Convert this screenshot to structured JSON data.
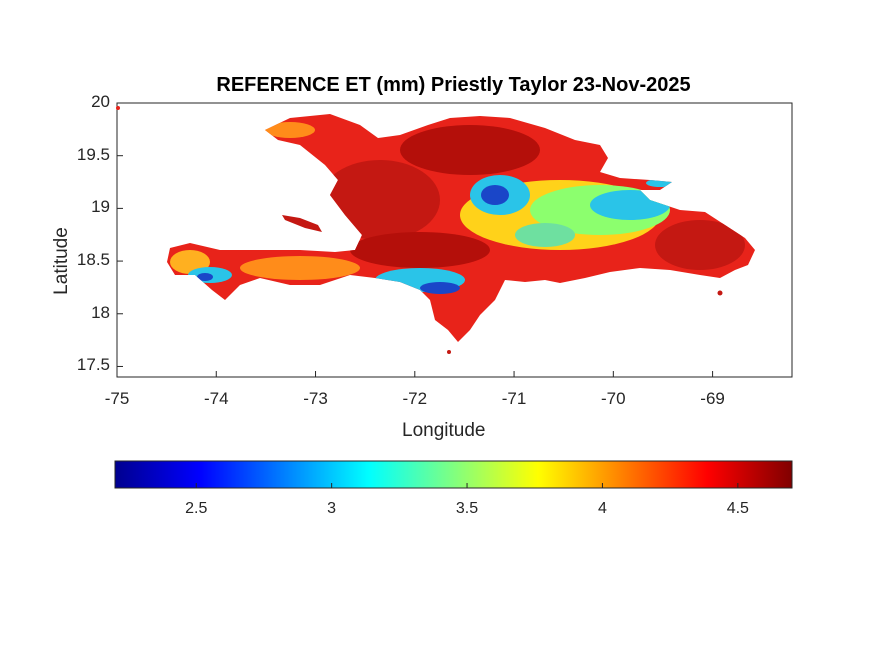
{
  "title": "REFERENCE ET (mm) Priestly Taylor 23-Nov-2025",
  "axes": {
    "xlabel": "Longitude",
    "ylabel": "Latitude",
    "xlim": [
      -75,
      -68.2
    ],
    "ylim": [
      17.4,
      20
    ],
    "x_ticks": [
      "-75",
      "-74",
      "-73",
      "-72",
      "-71",
      "-70",
      "-69"
    ],
    "x_tick_values": [
      -75,
      -74,
      -73,
      -72,
      -71,
      -70,
      -69
    ],
    "y_ticks": [
      "20",
      "19.5",
      "19",
      "18.5",
      "18",
      "17.5"
    ],
    "y_tick_values": [
      20,
      19.5,
      19,
      18.5,
      18,
      17.5
    ]
  },
  "colorbar": {
    "colormap": "jet",
    "range": [
      2.2,
      4.7
    ],
    "ticks": [
      "2.5",
      "3",
      "3.5",
      "4",
      "4.5"
    ],
    "tick_values": [
      2.5,
      3,
      3.5,
      4,
      4.5
    ],
    "orientation": "horizontal"
  },
  "colors": {
    "dominant": "#e8231a",
    "high": "#b40f0a",
    "mid": "#ff8c1a",
    "low": "#2ac4e8",
    "lowest": "#1a46c8"
  }
}
